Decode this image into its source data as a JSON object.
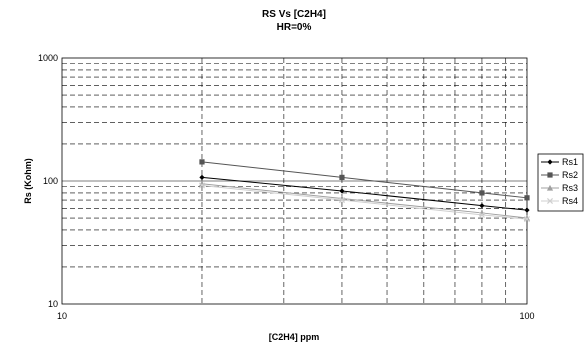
{
  "chart_data": {
    "type": "line",
    "title": "RS Vs [C2H4]",
    "subtitle": "HR=0%",
    "xlabel": "[C2H4] ppm",
    "ylabel": "Rs (Kohm)",
    "x_scale": "log",
    "y_scale": "log",
    "xlim": [
      10,
      100
    ],
    "ylim": [
      10,
      1000
    ],
    "x_ticks": [
      "10",
      "100"
    ],
    "y_ticks": [
      "10",
      "100",
      "1000"
    ],
    "grid": true,
    "legend_position": "right",
    "x": [
      20,
      40,
      80,
      100
    ],
    "series": [
      {
        "name": "Rs1",
        "color": "#000000",
        "marker": "diamond",
        "values": [
          107,
          83,
          63,
          58
        ]
      },
      {
        "name": "Rs2",
        "color": "#555555",
        "marker": "square",
        "values": [
          143,
          107,
          80,
          73
        ]
      },
      {
        "name": "Rs3",
        "color": "#a0a0a0",
        "marker": "triangle",
        "values": [
          95,
          72,
          55,
          50
        ]
      },
      {
        "name": "Rs4",
        "color": "#cfcfcf",
        "marker": "x",
        "values": [
          92,
          70,
          53,
          49
        ]
      }
    ]
  }
}
